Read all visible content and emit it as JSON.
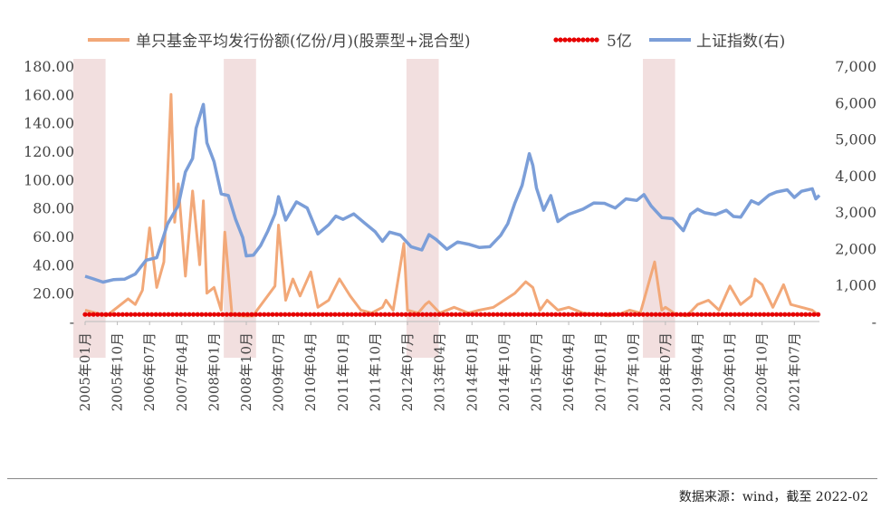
{
  "source_note": "数据来源：wind，截至 2022-02",
  "colors": {
    "orange": "#F2A878",
    "red": "#E60000",
    "blue": "#7B9ED8",
    "shade": "#F2DFDF"
  },
  "chart_data": {
    "type": "line",
    "legend": [
      {
        "name": "单只基金平均发行份额(亿份/月)(股票型+混合型)",
        "style": "line",
        "color": "#F2A878"
      },
      {
        "name": "5亿",
        "style": "dots",
        "color": "#E60000"
      },
      {
        "name": "上证指数(右)",
        "style": "line",
        "color": "#7B9ED8"
      }
    ],
    "legend_position": "top",
    "x_tick_labels": [
      "2005年01月",
      "2005年10月",
      "2006年07月",
      "2007年04月",
      "2008年01月",
      "2008年10月",
      "2009年07月",
      "2010年04月",
      "2011年01月",
      "2011年10月",
      "2012年07月",
      "2013年04月",
      "2014年01月",
      "2014年10月",
      "2015年07月",
      "2016年04月",
      "2017年01月",
      "2017年10月",
      "2018年07月",
      "2019年04月",
      "2020年01月",
      "2020年10月",
      "2021年07月"
    ],
    "x_range": [
      "2005-01",
      "2022-02"
    ],
    "y_left": {
      "range": [
        0,
        180
      ],
      "tick_labels": [
        "-",
        "20.00",
        "40.00",
        "60.00",
        "80.00",
        "100.00",
        "120.00",
        "140.00",
        "160.00",
        "180.00"
      ],
      "tick_values": [
        0,
        20,
        40,
        60,
        80,
        100,
        120,
        140,
        160,
        180
      ]
    },
    "y_right": {
      "range": [
        0,
        7000
      ],
      "tick_labels": [
        "-",
        "1,000",
        "2,000",
        "3,000",
        "4,000",
        "5,000",
        "6,000",
        "7,000"
      ],
      "tick_values": [
        0,
        1000,
        2000,
        3000,
        4000,
        5000,
        6000,
        7000
      ]
    },
    "shaded_periods": [
      {
        "start": "2005-01",
        "end": "2005-10"
      },
      {
        "start": "2008-07",
        "end": "2009-04"
      },
      {
        "start": "2012-10",
        "end": "2013-07"
      },
      {
        "start": "2018-04",
        "end": "2019-01"
      }
    ],
    "series": [
      {
        "name": "单只基金平均发行份额(亿份/月)(股票型+混合型)",
        "axis": "left",
        "color": "#F2A878",
        "points": [
          [
            "2005-01",
            8
          ],
          [
            "2005-04",
            6
          ],
          [
            "2005-07",
            4
          ],
          [
            "2005-10",
            10
          ],
          [
            "2006-01",
            16
          ],
          [
            "2006-03",
            12
          ],
          [
            "2006-05",
            22
          ],
          [
            "2006-07",
            66
          ],
          [
            "2006-09",
            24
          ],
          [
            "2006-11",
            42
          ],
          [
            "2007-01",
            160
          ],
          [
            "2007-02",
            70
          ],
          [
            "2007-03",
            97
          ],
          [
            "2007-05",
            32
          ],
          [
            "2007-07",
            92
          ],
          [
            "2007-09",
            40
          ],
          [
            "2007-10",
            85
          ],
          [
            "2007-11",
            20
          ],
          [
            "2008-01",
            24
          ],
          [
            "2008-03",
            8
          ],
          [
            "2008-04",
            63
          ],
          [
            "2008-06",
            5
          ],
          [
            "2008-09",
            4
          ],
          [
            "2008-12",
            4
          ],
          [
            "2009-01",
            8
          ],
          [
            "2009-06",
            25
          ],
          [
            "2009-07",
            68
          ],
          [
            "2009-09",
            15
          ],
          [
            "2009-11",
            30
          ],
          [
            "2010-01",
            18
          ],
          [
            "2010-04",
            35
          ],
          [
            "2010-06",
            10
          ],
          [
            "2010-09",
            15
          ],
          [
            "2010-12",
            30
          ],
          [
            "2011-03",
            18
          ],
          [
            "2011-06",
            8
          ],
          [
            "2011-09",
            6
          ],
          [
            "2011-12",
            10
          ],
          [
            "2012-01",
            15
          ],
          [
            "2012-03",
            8
          ],
          [
            "2012-06",
            55
          ],
          [
            "2012-07",
            8
          ],
          [
            "2012-10",
            6
          ],
          [
            "2012-12",
            12
          ],
          [
            "2013-01",
            14
          ],
          [
            "2013-04",
            6
          ],
          [
            "2013-08",
            10
          ],
          [
            "2013-12",
            6
          ],
          [
            "2014-03",
            8
          ],
          [
            "2014-07",
            10
          ],
          [
            "2014-10",
            15
          ],
          [
            "2015-01",
            20
          ],
          [
            "2015-04",
            28
          ],
          [
            "2015-06",
            24
          ],
          [
            "2015-08",
            8
          ],
          [
            "2015-10",
            15
          ],
          [
            "2016-01",
            8
          ],
          [
            "2016-04",
            10
          ],
          [
            "2016-08",
            6
          ],
          [
            "2016-12",
            5
          ],
          [
            "2017-03",
            4
          ],
          [
            "2017-06",
            5
          ],
          [
            "2017-09",
            8
          ],
          [
            "2017-12",
            6
          ],
          [
            "2018-04",
            42
          ],
          [
            "2018-06",
            8
          ],
          [
            "2018-07",
            10
          ],
          [
            "2018-10",
            5
          ],
          [
            "2019-01",
            4
          ],
          [
            "2019-04",
            12
          ],
          [
            "2019-07",
            15
          ],
          [
            "2019-10",
            8
          ],
          [
            "2020-01",
            25
          ],
          [
            "2020-04",
            12
          ],
          [
            "2020-07",
            18
          ],
          [
            "2020-08",
            30
          ],
          [
            "2020-10",
            26
          ],
          [
            "2021-01",
            10
          ],
          [
            "2021-04",
            26
          ],
          [
            "2021-06",
            12
          ],
          [
            "2021-09",
            10
          ],
          [
            "2021-12",
            8
          ],
          [
            "2022-02",
            4
          ]
        ]
      },
      {
        "name": "5亿",
        "axis": "left",
        "color": "#E60000",
        "style": "dots",
        "constant": 5
      },
      {
        "name": "上证指数(右)",
        "axis": "right",
        "color": "#7B9ED8",
        "points": [
          [
            "2005-01",
            1240
          ],
          [
            "2005-03",
            1180
          ],
          [
            "2005-06",
            1080
          ],
          [
            "2005-09",
            1150
          ],
          [
            "2005-12",
            1160
          ],
          [
            "2006-03",
            1300
          ],
          [
            "2006-06",
            1680
          ],
          [
            "2006-09",
            1750
          ],
          [
            "2006-12",
            2670
          ],
          [
            "2007-03",
            3180
          ],
          [
            "2007-05",
            4100
          ],
          [
            "2007-07",
            4470
          ],
          [
            "2007-08",
            5300
          ],
          [
            "2007-10",
            5950
          ],
          [
            "2007-11",
            4900
          ],
          [
            "2008-01",
            4380
          ],
          [
            "2008-03",
            3500
          ],
          [
            "2008-05",
            3450
          ],
          [
            "2008-07",
            2800
          ],
          [
            "2008-09",
            2300
          ],
          [
            "2008-10",
            1800
          ],
          [
            "2008-12",
            1820
          ],
          [
            "2009-02",
            2080
          ],
          [
            "2009-04",
            2480
          ],
          [
            "2009-06",
            2950
          ],
          [
            "2009-07",
            3420
          ],
          [
            "2009-09",
            2780
          ],
          [
            "2009-12",
            3280
          ],
          [
            "2010-03",
            3110
          ],
          [
            "2010-06",
            2400
          ],
          [
            "2010-09",
            2650
          ],
          [
            "2010-11",
            2890
          ],
          [
            "2011-01",
            2800
          ],
          [
            "2011-04",
            2950
          ],
          [
            "2011-07",
            2700
          ],
          [
            "2011-10",
            2460
          ],
          [
            "2011-12",
            2200
          ],
          [
            "2012-02",
            2450
          ],
          [
            "2012-05",
            2370
          ],
          [
            "2012-08",
            2050
          ],
          [
            "2012-11",
            1960
          ],
          [
            "2013-01",
            2380
          ],
          [
            "2013-03",
            2250
          ],
          [
            "2013-06",
            1980
          ],
          [
            "2013-09",
            2180
          ],
          [
            "2013-12",
            2120
          ],
          [
            "2014-03",
            2030
          ],
          [
            "2014-06",
            2050
          ],
          [
            "2014-09",
            2360
          ],
          [
            "2014-11",
            2680
          ],
          [
            "2015-01",
            3250
          ],
          [
            "2015-03",
            3730
          ],
          [
            "2015-05",
            4600
          ],
          [
            "2015-06",
            4280
          ],
          [
            "2015-07",
            3660
          ],
          [
            "2015-09",
            3050
          ],
          [
            "2015-11",
            3450
          ],
          [
            "2016-01",
            2740
          ],
          [
            "2016-04",
            2940
          ],
          [
            "2016-08",
            3080
          ],
          [
            "2016-11",
            3250
          ],
          [
            "2017-02",
            3240
          ],
          [
            "2017-05",
            3110
          ],
          [
            "2017-08",
            3360
          ],
          [
            "2017-11",
            3320
          ],
          [
            "2018-01",
            3480
          ],
          [
            "2018-03",
            3170
          ],
          [
            "2018-06",
            2850
          ],
          [
            "2018-09",
            2820
          ],
          [
            "2018-12",
            2490
          ],
          [
            "2019-02",
            2940
          ],
          [
            "2019-04",
            3080
          ],
          [
            "2019-06",
            2980
          ],
          [
            "2019-09",
            2930
          ],
          [
            "2019-12",
            3050
          ],
          [
            "2020-02",
            2880
          ],
          [
            "2020-04",
            2860
          ],
          [
            "2020-07",
            3310
          ],
          [
            "2020-09",
            3220
          ],
          [
            "2020-12",
            3470
          ],
          [
            "2021-02",
            3550
          ],
          [
            "2021-05",
            3610
          ],
          [
            "2021-07",
            3400
          ],
          [
            "2021-09",
            3570
          ],
          [
            "2021-12",
            3640
          ],
          [
            "2022-01",
            3360
          ],
          [
            "2022-02",
            3460
          ]
        ]
      }
    ]
  }
}
